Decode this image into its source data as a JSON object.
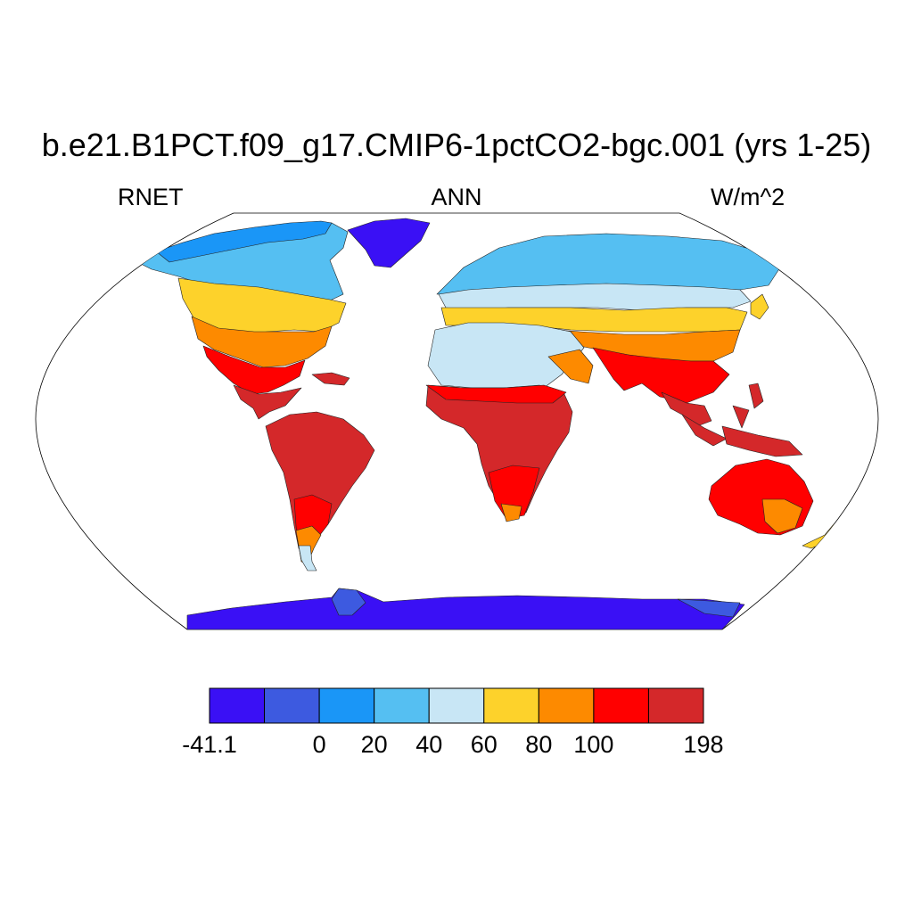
{
  "title": "b.e21.B1PCT.f09_g17.CMIP6-1pctCO2-bgc.001 (yrs 1-25)",
  "left_label": "RNET",
  "center_label": "ANN",
  "right_label": "W/m^2",
  "colorbar": {
    "colors": [
      "#3a10f5",
      "#3d5ae0",
      "#1a96f7",
      "#55bff2",
      "#c8e6f5",
      "#fdd22b",
      "#fd8a00",
      "#ff0000",
      "#d4282a"
    ],
    "labels": [
      {
        "text": "-41.1",
        "boundary": 0
      },
      {
        "text": "0",
        "boundary": 2
      },
      {
        "text": "20",
        "boundary": 3
      },
      {
        "text": "40",
        "boundary": 4
      },
      {
        "text": "60",
        "boundary": 5
      },
      {
        "text": "80",
        "boundary": 6
      },
      {
        "text": "100",
        "boundary": 7
      },
      {
        "text": "198",
        "boundary": 9
      }
    ]
  }
}
